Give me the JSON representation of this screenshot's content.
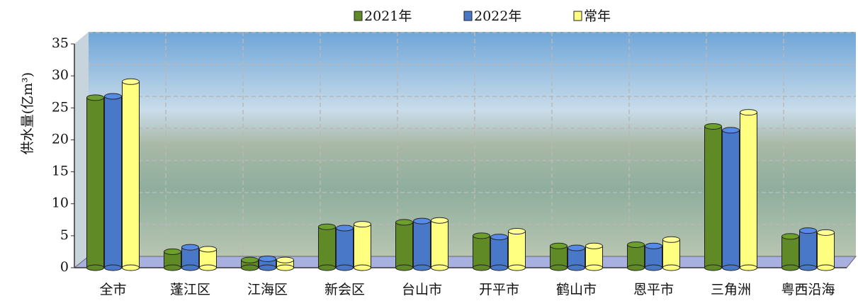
{
  "chart_data": {
    "type": "bar",
    "y_label": "供水量(亿m³)",
    "categories": [
      "全市",
      "蓬江区",
      "江海区",
      "新会区",
      "台山市",
      "开平市",
      "鹤山市",
      "恩平市",
      "三角洲",
      "粤西沿海"
    ],
    "series": [
      {
        "name": "2021年",
        "color": "#5f8a25",
        "values": [
          26.6,
          2.5,
          1.2,
          6.4,
          7.1,
          5.0,
          3.4,
          3.6,
          22.1,
          4.9
        ]
      },
      {
        "name": "2022年",
        "color": "#4a78c8",
        "values": [
          26.8,
          3.2,
          1.4,
          6.2,
          7.3,
          4.8,
          3.1,
          3.4,
          21.5,
          5.8
        ]
      },
      {
        "name": "常年",
        "color": "#ffff80",
        "values": [
          29.1,
          2.9,
          1.2,
          6.8,
          7.4,
          5.7,
          3.4,
          4.4,
          24.3,
          5.5
        ]
      }
    ],
    "ylim": [
      0,
      35
    ],
    "yticks": [
      0,
      5,
      10,
      15,
      20,
      25,
      30,
      35
    ],
    "grid": true,
    "legend": "top"
  }
}
